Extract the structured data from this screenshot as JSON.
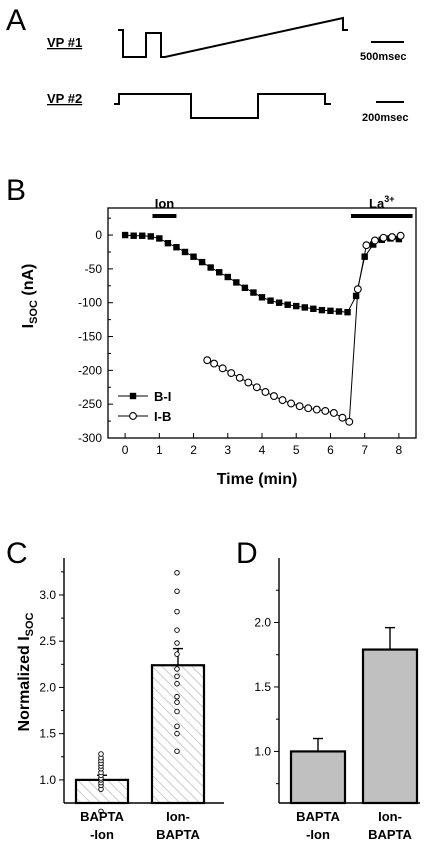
{
  "panels": {
    "A": "A",
    "B": "B",
    "C": "C",
    "D": "D"
  },
  "panel_a": {
    "protocols": [
      {
        "label": "VP #1",
        "scale_label": "500msec"
      },
      {
        "label": "VP #2",
        "scale_label": "200msec"
      }
    ]
  },
  "chart_data": [
    {
      "panel": "B",
      "type": "scatter",
      "xlabel": "Time (min)",
      "ylabel": "I",
      "ylabel_sub": "SOC",
      "ylabel_suffix": " (nA)",
      "xlim": [
        -0.5,
        8.5
      ],
      "ylim": [
        -300,
        40
      ],
      "xticks": [
        0,
        1,
        2,
        3,
        4,
        5,
        6,
        7,
        8
      ],
      "yticks": [
        0,
        -50,
        -100,
        -150,
        -200,
        -250,
        -300
      ],
      "legend_position": "bottom-left",
      "annotations": [
        {
          "text": "Ion",
          "x_start": 0.8,
          "x_end": 1.5
        },
        {
          "text": "La",
          "superscript": "3+",
          "x_start": 6.6,
          "x_end": 8.4
        }
      ],
      "series": [
        {
          "name": "B-I",
          "marker": "filled-square",
          "x": [
            0,
            0.25,
            0.5,
            0.75,
            1.0,
            1.25,
            1.5,
            1.75,
            2.0,
            2.25,
            2.5,
            2.75,
            3.0,
            3.25,
            3.5,
            3.75,
            4.0,
            4.25,
            4.5,
            4.75,
            5.0,
            5.25,
            5.5,
            5.75,
            6.0,
            6.25,
            6.5,
            6.75,
            7.0,
            7.25,
            7.5,
            7.75,
            8.0
          ],
          "y": [
            0,
            -1,
            -1,
            -2,
            -5,
            -12,
            -18,
            -25,
            -32,
            -40,
            -48,
            -55,
            -62,
            -70,
            -78,
            -85,
            -92,
            -97,
            -100,
            -103,
            -105,
            -107,
            -109,
            -111,
            -112,
            -113,
            -114,
            -90,
            -32,
            -14,
            -7,
            -5,
            -6
          ]
        },
        {
          "name": "I-B",
          "marker": "open-circle",
          "x": [
            2.4,
            2.6,
            2.85,
            3.1,
            3.35,
            3.6,
            3.85,
            4.1,
            4.35,
            4.6,
            4.85,
            5.1,
            5.35,
            5.6,
            5.85,
            6.1,
            6.35,
            6.55,
            6.8,
            7.05,
            7.3,
            7.55,
            7.8,
            8.05
          ],
          "y": [
            -185,
            -190,
            -197,
            -204,
            -211,
            -218,
            -225,
            -232,
            -238,
            -244,
            -249,
            -253,
            -256,
            -258,
            -260,
            -263,
            -270,
            -276,
            -80,
            -15,
            -8,
            -4,
            -3,
            -1
          ]
        }
      ]
    },
    {
      "panel": "C",
      "type": "bar",
      "ylabel": "Normalized I",
      "ylabel_sub": "SOC",
      "ylim": [
        0.75,
        3.4
      ],
      "yticks": [
        1.0,
        1.5,
        2.0,
        2.5,
        3.0
      ],
      "bar_fill": "hatched",
      "categories": [
        {
          "lines": [
            "BAPTA",
            "-Ion"
          ],
          "value": 1.0,
          "error": 0.05,
          "points": [
            0.66,
            0.9,
            0.94,
            0.97,
            1.0,
            1.02,
            1.05,
            1.08,
            1.12,
            1.15,
            1.18,
            1.21,
            1.24,
            1.28
          ]
        },
        {
          "lines": [
            "Ion-",
            "BAPTA"
          ],
          "value": 2.24,
          "error": 0.18,
          "points": [
            1.31,
            1.5,
            1.58,
            1.74,
            1.84,
            1.9,
            2.04,
            2.12,
            2.2,
            2.36,
            2.48,
            2.62,
            2.82,
            3.04,
            3.24
          ]
        }
      ]
    },
    {
      "panel": "D",
      "type": "bar",
      "ylim": [
        0.6,
        2.5
      ],
      "yticks": [
        1.0,
        1.5,
        2.0
      ],
      "bar_color": "#c0c0c0",
      "categories": [
        {
          "lines": [
            "BAPTA",
            "-Ion"
          ],
          "value": 1.0,
          "error": 0.1
        },
        {
          "lines": [
            "Ion-",
            "BAPTA"
          ],
          "value": 1.79,
          "error": 0.17
        }
      ]
    }
  ]
}
